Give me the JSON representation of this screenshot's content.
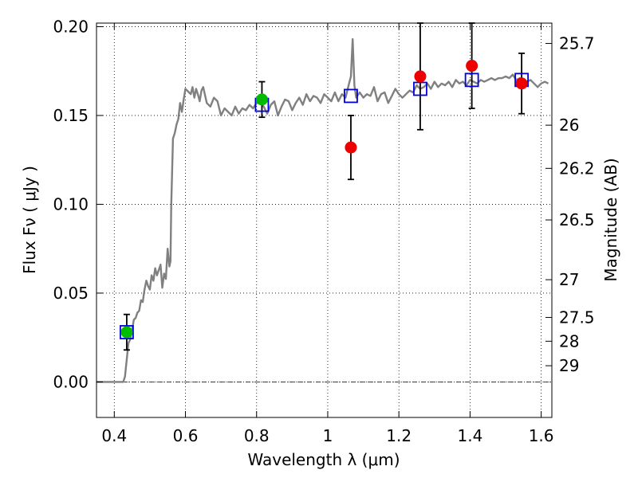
{
  "chart_data": {
    "type": "scatter",
    "title": "",
    "xlabel": "Wavelength  λ (μm)",
    "ylabel": "Flux  Fν  ( μJy )",
    "y2label": "Magnitude (AB)",
    "xlim": [
      0.35,
      1.63
    ],
    "ylim": [
      -0.02,
      0.202
    ],
    "grid": true,
    "legend": "none",
    "x_ticks": [
      0.4,
      0.6,
      0.8,
      1.0,
      1.2,
      1.4,
      1.6
    ],
    "x_tick_labels": [
      "0.4",
      "0.6",
      "0.8",
      "1",
      "1.2",
      "1.4",
      "1.6"
    ],
    "y_ticks": [
      0.0,
      0.05,
      0.1,
      0.15,
      0.2
    ],
    "y_tick_labels": [
      "0.00",
      "0.05",
      "0.10",
      "0.15",
      "0.20"
    ],
    "y2_ticks": [
      {
        "label": "25.7",
        "mag": 25.7
      },
      {
        "label": "26",
        "mag": 26.0
      },
      {
        "label": "26.2",
        "mag": 26.2
      },
      {
        "label": "26.5",
        "mag": 26.5
      },
      {
        "label": "27",
        "mag": 27.0
      },
      {
        "label": "27.5",
        "mag": 27.5
      },
      {
        "label": "28",
        "mag": 28.0
      },
      {
        "label": "29",
        "mag": 29.0
      }
    ],
    "series": [
      {
        "kind": "line",
        "color": "#808080",
        "x": [
          0.35,
          0.42,
          0.425,
          0.43,
          0.44,
          0.445,
          0.45,
          0.455,
          0.46,
          0.465,
          0.47,
          0.475,
          0.48,
          0.485,
          0.49,
          0.495,
          0.5,
          0.505,
          0.51,
          0.515,
          0.52,
          0.525,
          0.53,
          0.535,
          0.54,
          0.545,
          0.55,
          0.555,
          0.558,
          0.56,
          0.565,
          0.57,
          0.575,
          0.58,
          0.585,
          0.59,
          0.595,
          0.6,
          0.605,
          0.61,
          0.615,
          0.62,
          0.625,
          0.63,
          0.635,
          0.64,
          0.645,
          0.65,
          0.66,
          0.67,
          0.68,
          0.69,
          0.7,
          0.71,
          0.72,
          0.73,
          0.74,
          0.75,
          0.76,
          0.77,
          0.78,
          0.79,
          0.8,
          0.81,
          0.82,
          0.83,
          0.84,
          0.85,
          0.86,
          0.87,
          0.88,
          0.89,
          0.9,
          0.91,
          0.92,
          0.93,
          0.94,
          0.95,
          0.96,
          0.97,
          0.98,
          0.99,
          1.0,
          1.01,
          1.02,
          1.03,
          1.04,
          1.05,
          1.06,
          1.065,
          1.07,
          1.075,
          1.08,
          1.09,
          1.1,
          1.11,
          1.12,
          1.13,
          1.14,
          1.15,
          1.16,
          1.17,
          1.18,
          1.19,
          1.2,
          1.21,
          1.22,
          1.23,
          1.24,
          1.25,
          1.26,
          1.27,
          1.28,
          1.29,
          1.3,
          1.31,
          1.32,
          1.33,
          1.34,
          1.35,
          1.36,
          1.37,
          1.38,
          1.39,
          1.4,
          1.41,
          1.42,
          1.43,
          1.44,
          1.45,
          1.46,
          1.47,
          1.48,
          1.49,
          1.5,
          1.51,
          1.52,
          1.53,
          1.54,
          1.55,
          1.56,
          1.57,
          1.58,
          1.59,
          1.6,
          1.61,
          1.62
        ],
        "y": [
          0.0,
          0.0,
          0.0,
          0.003,
          0.022,
          0.024,
          0.029,
          0.035,
          0.036,
          0.039,
          0.04,
          0.046,
          0.045,
          0.052,
          0.057,
          0.054,
          0.052,
          0.06,
          0.057,
          0.064,
          0.06,
          0.063,
          0.066,
          0.053,
          0.061,
          0.058,
          0.075,
          0.065,
          0.068,
          0.099,
          0.137,
          0.14,
          0.145,
          0.148,
          0.157,
          0.152,
          0.159,
          0.165,
          0.164,
          0.163,
          0.162,
          0.166,
          0.16,
          0.165,
          0.162,
          0.158,
          0.164,
          0.166,
          0.157,
          0.155,
          0.16,
          0.158,
          0.15,
          0.154,
          0.152,
          0.15,
          0.155,
          0.151,
          0.154,
          0.153,
          0.156,
          0.154,
          0.157,
          0.157,
          0.155,
          0.151,
          0.156,
          0.158,
          0.15,
          0.155,
          0.159,
          0.158,
          0.153,
          0.157,
          0.16,
          0.156,
          0.162,
          0.158,
          0.161,
          0.16,
          0.157,
          0.162,
          0.16,
          0.158,
          0.163,
          0.158,
          0.162,
          0.16,
          0.168,
          0.172,
          0.193,
          0.167,
          0.16,
          0.163,
          0.16,
          0.162,
          0.161,
          0.166,
          0.158,
          0.162,
          0.163,
          0.157,
          0.161,
          0.165,
          0.162,
          0.16,
          0.162,
          0.164,
          0.163,
          0.167,
          0.165,
          0.166,
          0.168,
          0.165,
          0.169,
          0.166,
          0.168,
          0.167,
          0.169,
          0.166,
          0.17,
          0.168,
          0.169,
          0.167,
          0.17,
          0.169,
          0.168,
          0.17,
          0.169,
          0.17,
          0.171,
          0.17,
          0.171,
          0.171,
          0.172,
          0.171,
          0.173,
          0.17,
          0.171,
          0.17,
          0.169,
          0.17,
          0.168,
          0.166,
          0.168,
          0.169,
          0.168
        ]
      },
      {
        "kind": "model_boxes",
        "color": "#0000dd",
        "x": [
          0.435,
          0.815,
          1.065,
          1.26,
          1.405,
          1.545
        ],
        "y": [
          0.028,
          0.156,
          0.161,
          0.165,
          0.17,
          0.17
        ]
      },
      {
        "kind": "points",
        "color": "#00bb00",
        "x": [
          0.435,
          0.815
        ],
        "y": [
          0.028,
          0.159
        ],
        "yerr": [
          0.01,
          0.01
        ]
      },
      {
        "kind": "points",
        "color": "#ee0000",
        "x": [
          1.065,
          1.26,
          1.405,
          1.545
        ],
        "y": [
          0.132,
          0.172,
          0.178,
          0.168
        ],
        "yerr_low": [
          0.018,
          0.03,
          0.024,
          0.017
        ],
        "yerr_high": [
          0.018,
          0.03,
          0.024,
          0.017
        ]
      }
    ]
  }
}
